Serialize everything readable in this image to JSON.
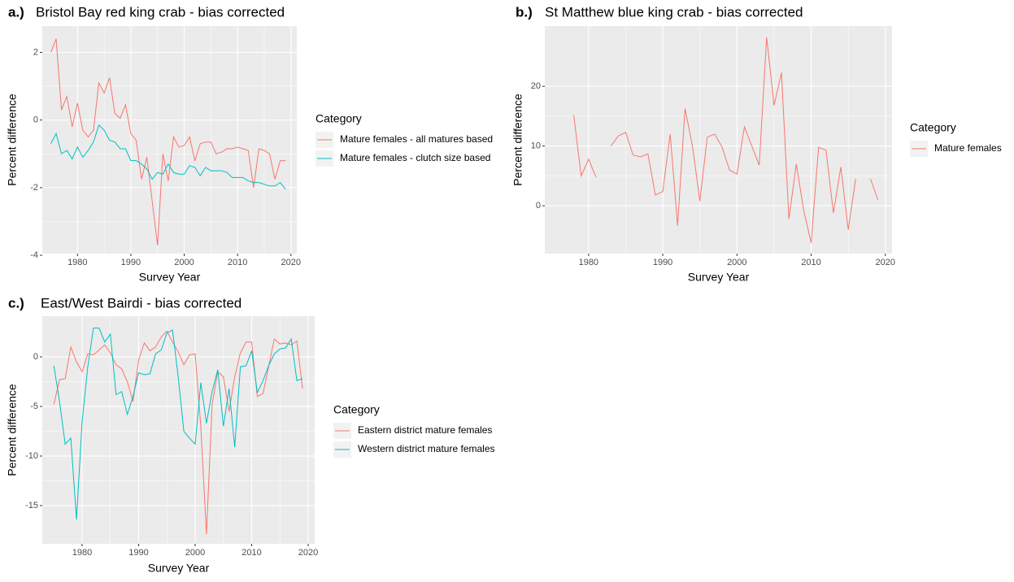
{
  "chart_data": [
    {
      "type": "line",
      "panel_label": "a.)",
      "title": "Bristol Bay red king crab - bias corrected",
      "x_label": "Survey Year",
      "y_label": "Percent difference",
      "legend_title": "Category",
      "x": [
        1975,
        1976,
        1977,
        1978,
        1979,
        1980,
        1981,
        1982,
        1983,
        1984,
        1985,
        1986,
        1987,
        1988,
        1989,
        1990,
        1991,
        1992,
        1993,
        1994,
        1995,
        1996,
        1997,
        1998,
        1999,
        2000,
        2001,
        2002,
        2003,
        2004,
        2005,
        2006,
        2007,
        2008,
        2009,
        2010,
        2011,
        2012,
        2013,
        2014,
        2015,
        2016,
        2017,
        2018,
        2019
      ],
      "series": [
        {
          "name": "Mature females - all matures based",
          "color": "#F8766D",
          "values": [
            2.0,
            2.4,
            0.3,
            0.7,
            -0.2,
            0.5,
            -0.3,
            -0.5,
            -0.3,
            1.1,
            0.8,
            1.25,
            0.2,
            0.05,
            0.45,
            -0.4,
            -0.6,
            -1.75,
            -1.1,
            -2.4,
            -3.7,
            -1.0,
            -1.8,
            -0.5,
            -0.8,
            -0.75,
            -0.5,
            -1.2,
            -0.7,
            -0.65,
            -0.65,
            -1.0,
            -0.95,
            -0.85,
            -0.85,
            -0.8,
            -0.85,
            -0.9,
            -2.0,
            -0.85,
            -0.9,
            -1.0,
            -1.75,
            -1.2,
            -1.2
          ]
        },
        {
          "name": "Mature females - clutch size based",
          "color": "#00BFC4",
          "values": [
            -0.7,
            -0.4,
            -1.0,
            -0.9,
            -1.15,
            -0.8,
            -1.1,
            -0.9,
            -0.65,
            -0.15,
            -0.3,
            -0.6,
            -0.65,
            -0.85,
            -0.85,
            -1.2,
            -1.2,
            -1.3,
            -1.45,
            -1.75,
            -1.55,
            -1.6,
            -1.3,
            -1.55,
            -1.6,
            -1.6,
            -1.35,
            -1.4,
            -1.65,
            -1.4,
            -1.5,
            -1.5,
            -1.5,
            -1.55,
            -1.7,
            -1.7,
            -1.7,
            -1.8,
            -1.85,
            -1.85,
            -1.9,
            -1.95,
            -1.95,
            -1.85,
            -2.05
          ]
        }
      ],
      "xlim": [
        1973.4,
        2021.1
      ],
      "xticks": [
        1980,
        1990,
        2000,
        2010,
        2020
      ],
      "ylim": [
        -3.95,
        2.78
      ],
      "yticks": [
        -4,
        -2,
        0,
        2
      ],
      "grid": true
    },
    {
      "type": "line",
      "panel_label": "b.)",
      "title": "St Matthew blue king crab - bias corrected",
      "x_label": "Survey Year",
      "y_label": "Percent difference",
      "legend_title": "Category",
      "x": [
        1978,
        1979,
        1980,
        1981,
        1982,
        1983,
        1984,
        1985,
        1986,
        1987,
        1988,
        1989,
        1990,
        1991,
        1992,
        1993,
        1994,
        1995,
        1996,
        1997,
        1998,
        1999,
        2000,
        2001,
        2002,
        2003,
        2004,
        2005,
        2006,
        2007,
        2008,
        2009,
        2010,
        2011,
        2012,
        2013,
        2014,
        2015,
        2016,
        2017,
        2018,
        2019
      ],
      "series": [
        {
          "name": "Mature females",
          "color": "#F8766D",
          "values": [
            15.2,
            5.0,
            7.8,
            4.8,
            null,
            10.0,
            11.7,
            12.3,
            8.5,
            8.2,
            8.7,
            1.8,
            2.4,
            12.0,
            -3.3,
            16.3,
            10.0,
            0.8,
            11.5,
            12.0,
            9.8,
            6.0,
            5.3,
            13.2,
            10.0,
            6.8,
            28.2,
            16.8,
            22.3,
            -2.2,
            7.0,
            -0.8,
            -6.2,
            9.8,
            9.3,
            -1.2,
            6.5,
            -4.0,
            4.5,
            null,
            4.5,
            1.0
          ]
        }
      ],
      "xlim": [
        1974.1,
        2020.9
      ],
      "xticks": [
        1980,
        1990,
        2000,
        2010,
        2020
      ],
      "ylim": [
        -8.0,
        30.1
      ],
      "yticks": [
        0,
        10,
        20
      ],
      "grid": true
    },
    {
      "type": "line",
      "panel_label": "c.)",
      "title": "East/West Bairdi - bias corrected",
      "x_label": "Survey Year",
      "y_label": "Percent difference",
      "legend_title": "Category",
      "x": [
        1975,
        1976,
        1977,
        1978,
        1979,
        1980,
        1981,
        1982,
        1983,
        1984,
        1985,
        1986,
        1987,
        1988,
        1989,
        1990,
        1991,
        1992,
        1993,
        1994,
        1995,
        1996,
        1997,
        1998,
        1999,
        2000,
        2001,
        2002,
        2003,
        2004,
        2005,
        2006,
        2007,
        2008,
        2009,
        2010,
        2011,
        2012,
        2013,
        2014,
        2015,
        2016,
        2017,
        2018,
        2019
      ],
      "series": [
        {
          "name": "Eastern district mature females",
          "color": "#F8766D",
          "values": [
            -4.8,
            -2.3,
            -2.2,
            1.0,
            -0.5,
            -1.5,
            0.3,
            0.2,
            0.7,
            1.2,
            0.4,
            -0.8,
            -1.2,
            -2.5,
            -4.5,
            -0.3,
            1.4,
            0.6,
            1.0,
            2.0,
            2.6,
            1.5,
            0.5,
            -0.8,
            0.2,
            0.3,
            -7.0,
            -17.9,
            -4.8,
            -1.5,
            -2.0,
            -5.5,
            -2.0,
            0.4,
            1.5,
            1.5,
            -4.0,
            -3.7,
            -1.0,
            1.8,
            1.3,
            1.4,
            1.2,
            1.6,
            -3.2
          ]
        },
        {
          "name": "Western district mature females",
          "color": "#00BFC4",
          "values": [
            -0.9,
            -4.5,
            -8.8,
            -8.2,
            -16.4,
            -6.5,
            -1.0,
            2.9,
            2.9,
            1.5,
            2.3,
            -3.8,
            -3.5,
            -5.8,
            -4.0,
            -1.6,
            -1.8,
            -1.7,
            0.3,
            0.7,
            2.4,
            2.7,
            -2.0,
            -7.5,
            -8.2,
            -8.8,
            -2.6,
            -6.7,
            -3.5,
            -1.3,
            -7.0,
            -3.2,
            -9.1,
            -1.0,
            -0.9,
            0.6,
            -3.6,
            -2.4,
            -0.9,
            0.3,
            0.8,
            0.9,
            1.8,
            -2.4,
            -2.2
          ]
        }
      ],
      "xlim": [
        1972.95,
        2021.15
      ],
      "xticks": [
        1980,
        1990,
        2000,
        2010,
        2020
      ],
      "ylim": [
        -18.85,
        4.1
      ],
      "yticks": [
        -15,
        -10,
        -5,
        0
      ],
      "grid": true
    }
  ]
}
